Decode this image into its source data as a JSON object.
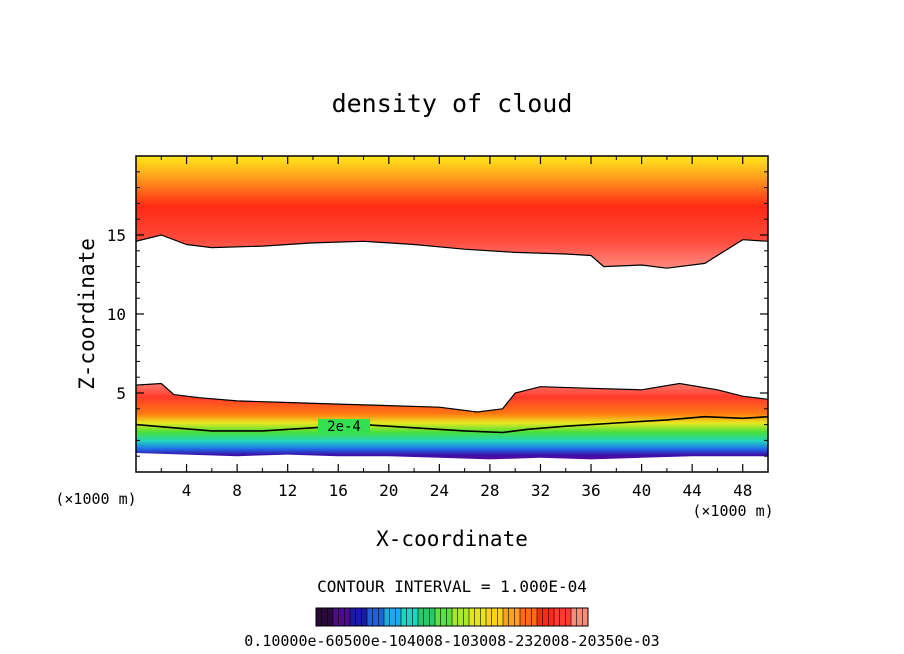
{
  "chart_data": {
    "type": "heatmap",
    "title": "density of cloud",
    "xlabel": "X-coordinate",
    "ylabel": "Z-coordinate",
    "x_units": "(×1000 m)",
    "z_units": "(×1000 m)",
    "xlim": [
      0,
      50
    ],
    "ylim": [
      0,
      20
    ],
    "x_ticks": [
      4,
      8,
      12,
      16,
      20,
      24,
      28,
      32,
      36,
      40,
      44,
      48
    ],
    "y_ticks": [
      5,
      10,
      15
    ],
    "contour_label": "2e-4",
    "contour_interval_text": "CONTOUR INTERVAL = 1.000E-04",
    "colorbar_label_text": "0.10000e-60500e-104008-103008-232008-20350e-03",
    "colorbar_colors": [
      "#2a0a3a",
      "#4b0d8c",
      "#1a1aa8",
      "#1f5fe0",
      "#20a8e8",
      "#22d4c0",
      "#28c86a",
      "#5ee040",
      "#a8e830",
      "#e6e620",
      "#ffd21a",
      "#ffa01e",
      "#ff6a1e",
      "#ff2a14",
      "#ff3a30",
      "#ff8a7a"
    ],
    "upper_layer_boundary": [
      [
        0,
        14.6
      ],
      [
        2,
        15.0
      ],
      [
        4,
        14.4
      ],
      [
        6,
        14.2
      ],
      [
        10,
        14.3
      ],
      [
        14,
        14.5
      ],
      [
        18,
        14.6
      ],
      [
        22,
        14.4
      ],
      [
        26,
        14.1
      ],
      [
        30,
        13.9
      ],
      [
        34,
        13.8
      ],
      [
        36,
        13.7
      ],
      [
        37,
        13.0
      ],
      [
        40,
        13.1
      ],
      [
        42,
        12.9
      ],
      [
        45,
        13.2
      ],
      [
        48,
        14.7
      ],
      [
        50,
        14.6
      ]
    ],
    "lower_layer_top": [
      [
        0,
        5.5
      ],
      [
        2,
        5.6
      ],
      [
        3,
        4.9
      ],
      [
        5,
        4.7
      ],
      [
        8,
        4.5
      ],
      [
        12,
        4.4
      ],
      [
        16,
        4.3
      ],
      [
        20,
        4.2
      ],
      [
        24,
        4.1
      ],
      [
        27,
        3.8
      ],
      [
        29,
        4.0
      ],
      [
        30,
        5.0
      ],
      [
        32,
        5.4
      ],
      [
        36,
        5.3
      ],
      [
        40,
        5.2
      ],
      [
        43,
        5.6
      ],
      [
        46,
        5.2
      ],
      [
        48,
        4.8
      ],
      [
        50,
        4.6
      ]
    ],
    "contour_2e4": [
      [
        0,
        3.0
      ],
      [
        3,
        2.8
      ],
      [
        6,
        2.6
      ],
      [
        10,
        2.6
      ],
      [
        14,
        2.8
      ],
      [
        18,
        3.0
      ],
      [
        22,
        2.8
      ],
      [
        26,
        2.6
      ],
      [
        29,
        2.5
      ],
      [
        31,
        2.7
      ],
      [
        34,
        2.9
      ],
      [
        38,
        3.1
      ],
      [
        42,
        3.3
      ],
      [
        45,
        3.5
      ],
      [
        48,
        3.4
      ],
      [
        50,
        3.5
      ]
    ],
    "lower_layer_bottom": [
      [
        0,
        1.2
      ],
      [
        4,
        1.1
      ],
      [
        8,
        1.0
      ],
      [
        12,
        1.1
      ],
      [
        16,
        1.0
      ],
      [
        20,
        1.0
      ],
      [
        24,
        0.9
      ],
      [
        28,
        0.8
      ],
      [
        32,
        0.9
      ],
      [
        36,
        0.8
      ],
      [
        40,
        0.9
      ],
      [
        44,
        1.0
      ],
      [
        48,
        1.0
      ],
      [
        50,
        1.0
      ]
    ]
  }
}
